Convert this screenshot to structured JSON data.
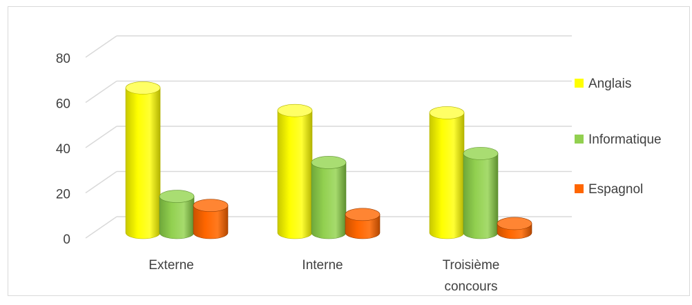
{
  "chart_data": {
    "type": "bar",
    "categories": [
      "Externe",
      "Interne",
      "Troisième concours"
    ],
    "series": [
      {
        "name": "Anglais",
        "values": [
          64,
          54,
          53
        ],
        "color": "#ffff00"
      },
      {
        "name": "Informatique",
        "values": [
          16,
          31,
          35
        ],
        "color": "#92d050"
      },
      {
        "name": "Espagnol",
        "values": [
          12,
          8,
          4
        ],
        "color": "#ff6600"
      }
    ],
    "ylim": [
      0,
      80
    ],
    "yticks": [
      0,
      20,
      40,
      60,
      80
    ],
    "grid": true,
    "legend": "right",
    "style": "3d-cylinder"
  }
}
